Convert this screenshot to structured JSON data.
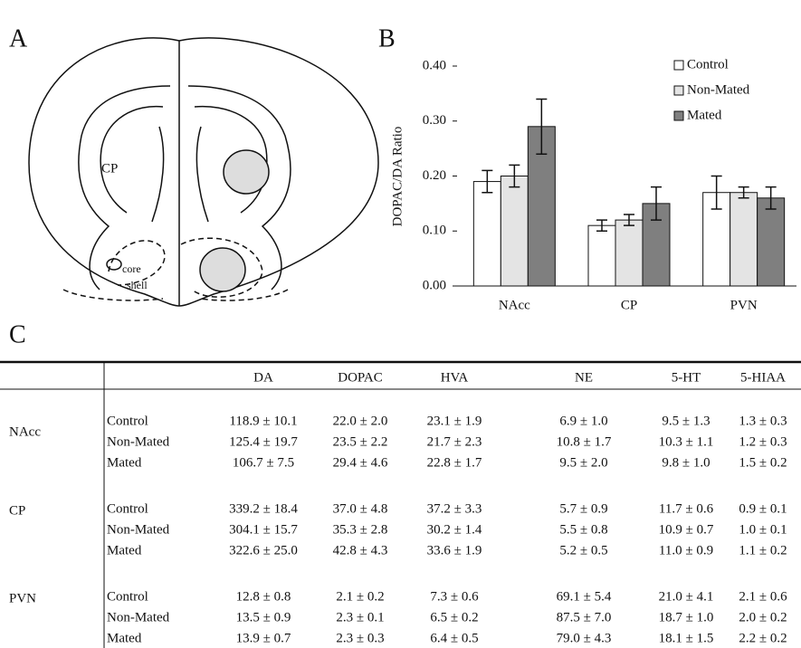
{
  "panel_labels": [
    "A",
    "B",
    "C"
  ],
  "diagram": {
    "labels": [
      "CP",
      "core",
      "shell"
    ]
  },
  "chart_data": {
    "type": "bar",
    "y_label": "DOPAC/DA Ratio",
    "categories": [
      "NAcc",
      "CP",
      "PVN"
    ],
    "series": [
      {
        "name": "Control",
        "color": "#ffffff",
        "values": [
          0.19,
          0.11,
          0.17
        ],
        "errors": [
          0.02,
          0.01,
          0.03
        ]
      },
      {
        "name": "Non-Mated",
        "color": "#e4e4e4",
        "values": [
          0.2,
          0.12,
          0.17
        ],
        "errors": [
          0.02,
          0.01,
          0.01
        ]
      },
      {
        "name": "Mated",
        "color": "#7f7f7f",
        "values": [
          0.29,
          0.15,
          0.16
        ],
        "errors": [
          0.05,
          0.03,
          0.02
        ]
      }
    ],
    "ylim": [
      0,
      0.4
    ],
    "yticks": [
      {
        "value": 0,
        "label": "0.00"
      },
      {
        "value": 0.1,
        "label": "0.10"
      },
      {
        "value": 0.2,
        "label": "0.20"
      },
      {
        "value": 0.3,
        "label": "0.30"
      },
      {
        "value": 0.4,
        "label": "0.40"
      }
    ],
    "legend": "top-right"
  },
  "table": {
    "columns": [
      "DA",
      "DOPAC",
      "HVA",
      "NE",
      "5-HT",
      "5-HIAA"
    ],
    "groups": [
      {
        "region": "NAcc",
        "rows": [
          {
            "condition": "Control",
            "cells": [
              "118.9 ± 10.1",
              "22.0 ± 2.0",
              "23.1 ± 1.9",
              "6.9 ± 1.0",
              "9.5 ± 1.3",
              "1.3 ± 0.3"
            ]
          },
          {
            "condition": "Non-Mated",
            "cells": [
              "125.4 ± 19.7",
              "23.5 ± 2.2",
              "21.7 ± 2.3",
              "10.8 ± 1.7",
              "10.3 ± 1.1",
              "1.2 ± 0.3"
            ]
          },
          {
            "condition": "Mated",
            "cells": [
              "106.7 ± 7.5",
              "29.4 ± 4.6",
              "22.8 ± 1.7",
              "9.5 ± 2.0",
              "9.8 ± 1.0",
              "1.5 ± 0.2"
            ]
          }
        ]
      },
      {
        "region": "CP",
        "rows": [
          {
            "condition": "Control",
            "cells": [
              "339.2 ± 18.4",
              "37.0 ± 4.8",
              "37.2 ± 3.3",
              "5.7 ± 0.9",
              "11.7 ± 0.6",
              "0.9 ± 0.1"
            ]
          },
          {
            "condition": "Non-Mated",
            "cells": [
              "304.1 ± 15.7",
              "35.3 ± 2.8",
              "30.2 ± 1.4",
              "5.5 ± 0.8",
              "10.9 ± 0.7",
              "1.0 ± 0.1"
            ]
          },
          {
            "condition": "Mated",
            "cells": [
              "322.6 ± 25.0",
              "42.8 ± 4.3",
              "33.6 ± 1.9",
              "5.2 ± 0.5",
              "11.0 ± 0.9",
              "1.1 ± 0.2"
            ]
          }
        ]
      },
      {
        "region": "PVN",
        "rows": [
          {
            "condition": "Control",
            "cells": [
              "12.8 ± 0.8",
              "2.1 ± 0.2",
              "7.3 ± 0.6",
              "69.1 ± 5.4",
              "21.0 ± 4.1",
              "2.1 ± 0.6"
            ]
          },
          {
            "condition": "Non-Mated",
            "cells": [
              "13.5 ± 0.9",
              "2.3 ± 0.1",
              "6.5 ± 0.2",
              "87.5 ± 7.0",
              "18.7 ± 1.0",
              "2.0 ± 0.2"
            ]
          },
          {
            "condition": "Mated",
            "cells": [
              "13.9 ± 0.7",
              "2.3 ± 0.3",
              "6.4 ± 0.5",
              "79.0 ± 4.3",
              "18.1 ± 1.5",
              "2.2 ± 0.2"
            ]
          }
        ]
      }
    ]
  }
}
